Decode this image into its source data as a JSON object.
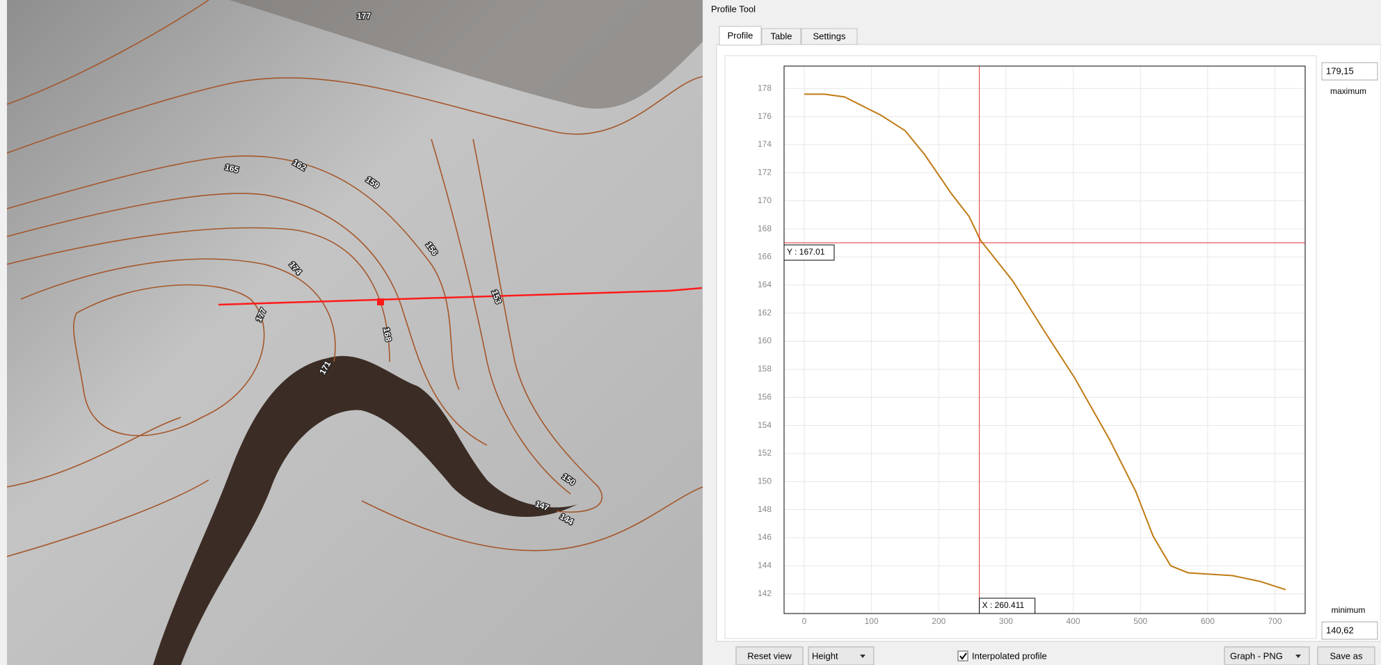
{
  "ui": {
    "title": "Profile Tool",
    "tabs": [
      "Profile",
      "Table",
      "Settings"
    ],
    "max_value": "179,15",
    "max_label": "maximum",
    "min_label": "minimum",
    "min_value": "140,62",
    "reset_button": "Reset view",
    "mode_combo": "Height",
    "interpolated_checkbox": "Interpolated profile",
    "export_combo": "Graph - PNG",
    "save_button": "Save as"
  },
  "map": {
    "contour_labels": [
      "177",
      "165",
      "162",
      "159",
      "156",
      "153",
      "174",
      "177",
      "168",
      "171",
      "150",
      "147",
      "144"
    ]
  },
  "chart_data": {
    "type": "line",
    "color": "#c07a12",
    "x": [
      0,
      30,
      60,
      114,
      150,
      179,
      219,
      245,
      262,
      310,
      356,
      402,
      454,
      493,
      519,
      545,
      571,
      637,
      677,
      716
    ],
    "values": [
      177.6,
      177.6,
      177.4,
      176.1,
      175.0,
      173.3,
      170.5,
      168.9,
      167.2,
      164.3,
      160.8,
      157.4,
      153.0,
      149.3,
      146.1,
      144.0,
      143.5,
      143.3,
      142.9,
      142.3
    ],
    "xlim": [
      -30,
      745
    ],
    "ylim": [
      140.6,
      179.6
    ],
    "xticks": [
      0,
      100,
      200,
      300,
      400,
      500,
      600,
      700
    ],
    "yticks": [
      142,
      144,
      146,
      148,
      150,
      152,
      154,
      156,
      158,
      160,
      162,
      164,
      166,
      168,
      170,
      172,
      174,
      176,
      178
    ],
    "grid": true,
    "crosshair": {
      "x": 260.411,
      "y": 167.01,
      "x_label": "X : 260.411",
      "y_label": "Y : 167.01",
      "color": "#e03030"
    }
  }
}
